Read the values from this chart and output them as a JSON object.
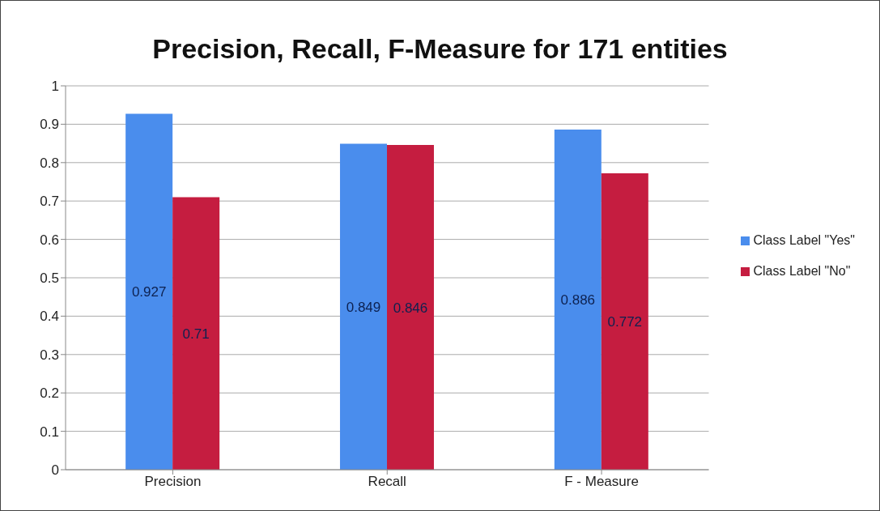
{
  "chart_data": {
    "type": "bar",
    "title": "Precision, Recall, F-Measure for 171 entities",
    "categories": [
      "Precision",
      "Recall",
      "F - Measure"
    ],
    "series": [
      {
        "name": "Class Label \"Yes\"",
        "color": "#4a8ded",
        "values": [
          0.927,
          0.849,
          0.886
        ]
      },
      {
        "name": "Class Label \"No\"",
        "color": "#c51d40",
        "values": [
          0.71,
          0.846,
          0.772
        ]
      }
    ],
    "ylim": [
      0,
      1
    ],
    "yticks": [
      0,
      0.1,
      0.2,
      0.3,
      0.4,
      0.5,
      0.6,
      0.7,
      0.8,
      0.9,
      1
    ],
    "grid": "y",
    "legend": "right",
    "data_labels": true
  }
}
